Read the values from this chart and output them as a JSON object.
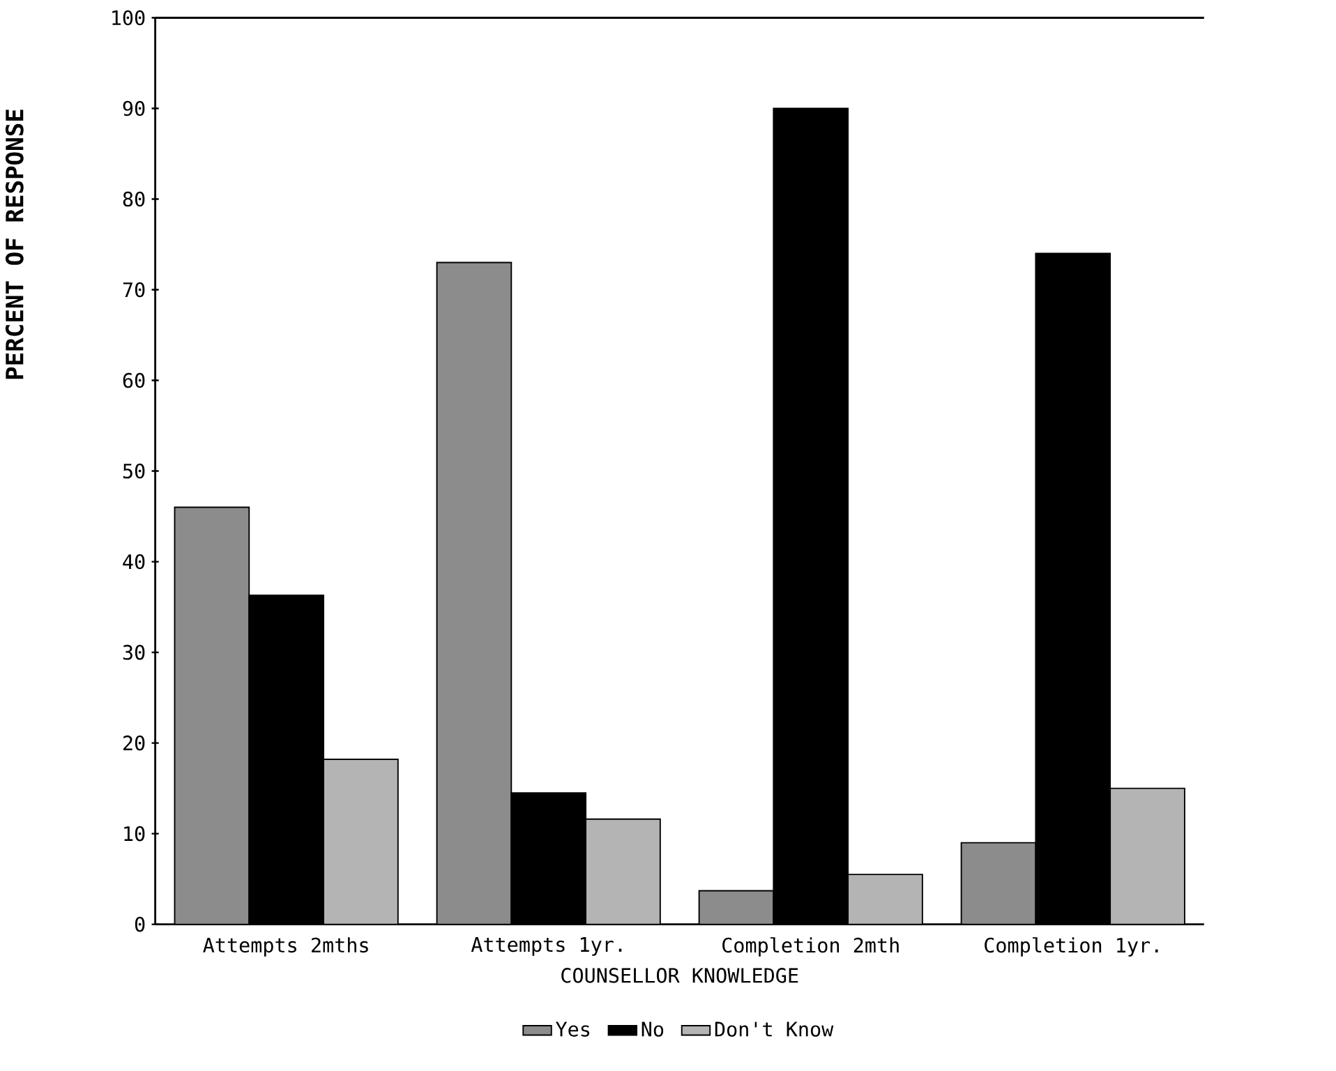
{
  "chart_data": {
    "type": "bar",
    "xlabel": "COUNSELLOR KNOWLEDGE",
    "ylabel": "PERCENT OF RESPONSE",
    "categories": [
      "Attempts 2mths",
      "Attempts 1yr.",
      "Completion 2mth",
      "Completion 1yr."
    ],
    "series": [
      {
        "name": "Yes",
        "color": "#8c8c8c",
        "values": [
          46,
          73,
          3.7,
          9
        ]
      },
      {
        "name": "No",
        "color": "#000000",
        "values": [
          36.3,
          14.5,
          90,
          74
        ]
      },
      {
        "name": "Don't Know",
        "color": "#b4b4b4",
        "values": [
          18.2,
          11.6,
          5.5,
          15
        ]
      }
    ],
    "ylim": [
      0,
      100
    ],
    "yticks": [
      0,
      10,
      20,
      30,
      40,
      50,
      60,
      70,
      80,
      90,
      100
    ],
    "grid": false,
    "legend": "bottom"
  }
}
